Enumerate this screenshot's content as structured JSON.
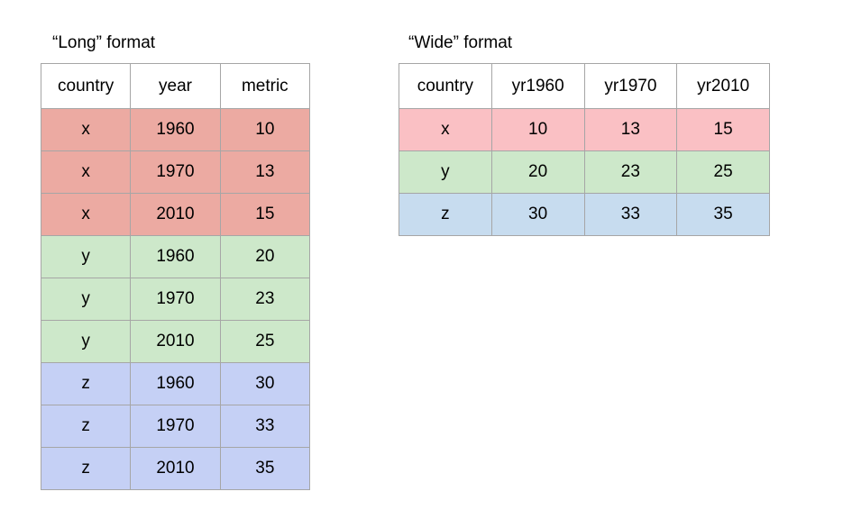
{
  "colors": {
    "long": {
      "x": "#ecaaa2",
      "y": "#cde8ca",
      "z": "#c5d0f5"
    },
    "wide": {
      "x": "#fac0c4",
      "y": "#cde8ca",
      "z": "#c7dcef"
    },
    "border": "#a6a6a6"
  },
  "long": {
    "caption": "“Long” format",
    "headers": [
      "country",
      "year",
      "metric"
    ],
    "rows": [
      [
        "x",
        "1960",
        "10"
      ],
      [
        "x",
        "1970",
        "13"
      ],
      [
        "x",
        "2010",
        "15"
      ],
      [
        "y",
        "1960",
        "20"
      ],
      [
        "y",
        "1970",
        "23"
      ],
      [
        "y",
        "2010",
        "25"
      ],
      [
        "z",
        "1960",
        "30"
      ],
      [
        "z",
        "1970",
        "33"
      ],
      [
        "z",
        "2010",
        "35"
      ]
    ]
  },
  "wide": {
    "caption": "“Wide” format",
    "headers": [
      "country",
      "yr1960",
      "yr1970",
      "yr2010"
    ],
    "rows": [
      [
        "x",
        "10",
        "13",
        "15"
      ],
      [
        "y",
        "20",
        "23",
        "25"
      ],
      [
        "z",
        "30",
        "33",
        "35"
      ]
    ]
  }
}
